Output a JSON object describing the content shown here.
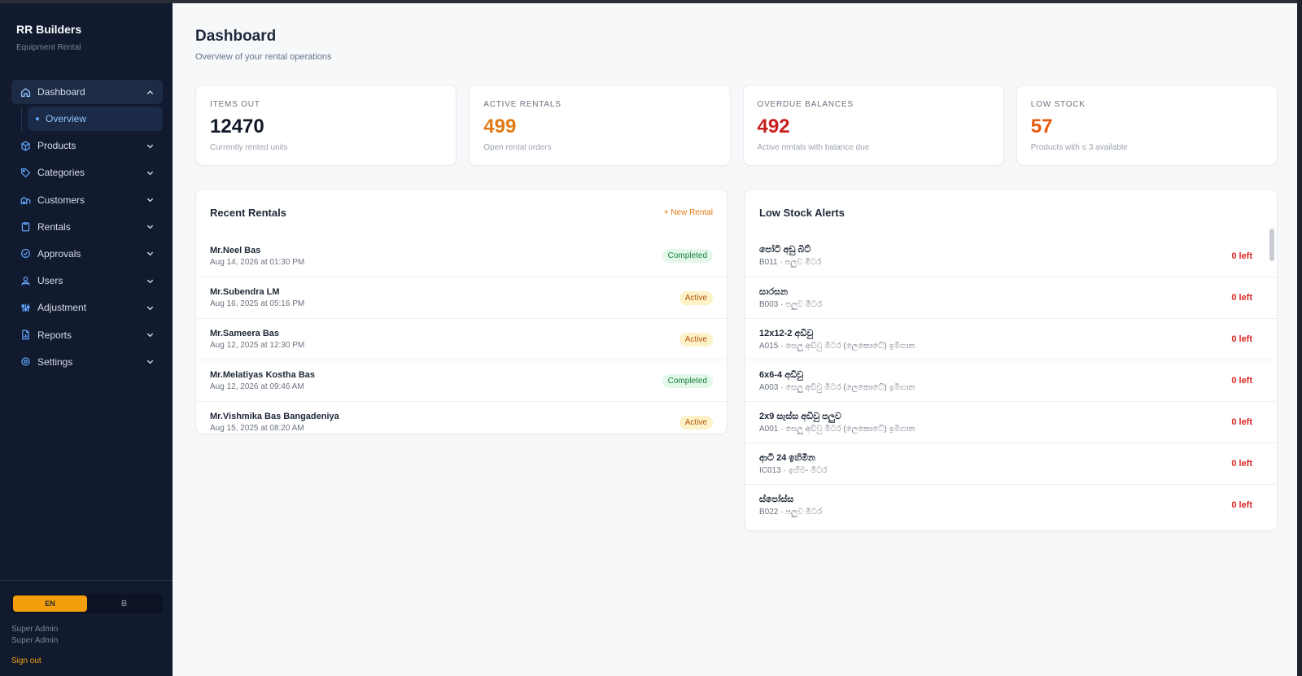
{
  "brand": {
    "title": "RR Builders",
    "subtitle": "Equipment Rental"
  },
  "nav": {
    "dashboard": "Dashboard",
    "overview": "Overview",
    "products": "Products",
    "categories": "Categories",
    "customers": "Customers",
    "rentals": "Rentals",
    "approvals": "Approvals",
    "users": "Users",
    "adjustment": "Adjustment",
    "reports": "Reports",
    "settings": "Settings"
  },
  "footer": {
    "lang_en": "EN",
    "lang_si": "සි",
    "user_name": "Super Admin",
    "user_role": "Super Admin",
    "signout": "Sign out"
  },
  "page": {
    "title": "Dashboard",
    "subtitle": "Overview of your rental operations"
  },
  "stats": [
    {
      "label": "ITEMS OUT",
      "value": "12470",
      "desc": "Currently rented units",
      "color": "#111827"
    },
    {
      "label": "ACTIVE RENTALS",
      "value": "499",
      "desc": "Open rental orders",
      "color": "#e07a14"
    },
    {
      "label": "OVERDUE BALANCES",
      "value": "492",
      "desc": "Active rentals with balance due",
      "color": "#c81e1e"
    },
    {
      "label": "LOW STOCK",
      "value": "57",
      "desc": "Products with ≤ 3 available",
      "color": "#ea580c"
    }
  ],
  "recent": {
    "title": "Recent Rentals",
    "new_label": "+ New Rental",
    "rows": [
      {
        "name": "Mr.Neel Bas",
        "date": "Aug 14, 2026 at 01:30 PM",
        "status": "Completed"
      },
      {
        "name": "Mr.Subendra LM",
        "date": "Aug 16, 2025 at 05:16 PM",
        "status": "Active"
      },
      {
        "name": "Mr.Sameera Bas",
        "date": "Aug 12, 2025 at 12:30 PM",
        "status": "Active"
      },
      {
        "name": "Mr.Melatiyas Kostha Bas",
        "date": "Aug 12, 2026 at 09:46 AM",
        "status": "Completed"
      },
      {
        "name": "Mr.Vishmika Bas Bangadeniya",
        "date": "Aug 15, 2025 at 08:20 AM",
        "status": "Active"
      }
    ]
  },
  "low_stock": {
    "title": "Low Stock Alerts",
    "rows": [
      {
        "name": "පෝටි අඩු බිට්",
        "code": "B011 · පලුව මීටර",
        "left": "0 left"
      },
      {
        "name": "සාරසන",
        "code": "B003 · පලුව මීටර",
        "left": "0 left"
      },
      {
        "name": "12x12-2 අඩිවු",
        "code": "A015 · සෙලු අඩිවු මීටර (ලෙකොටේ) ඉමිගාන",
        "left": "0 left"
      },
      {
        "name": "6x6-4 අඩිවු",
        "code": "A003 · සෙලු අඩිවු මීටර (ලෙකොටේ) ඉමිගාන",
        "left": "0 left"
      },
      {
        "name": "2x9 සැස්ස අඩිවු පලුව",
        "code": "A001 · සෙලු අඩිවු මීටර (ලෙකොටේ) ඉමිගාන",
        "left": "0 left"
      },
      {
        "name": "ආටි 24 ඉහිමින",
        "code": "IC013 · ඉහිම- මීටර",
        "left": "0 left"
      },
      {
        "name": "ස්පෝස්ස",
        "code": "B022 · පලුව මීටර",
        "left": "0 left"
      }
    ]
  }
}
